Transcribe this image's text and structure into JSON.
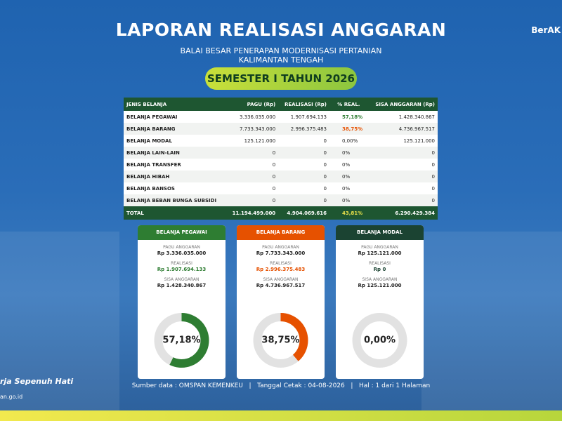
{
  "header": {
    "title": "LAPORAN REALISASI ANGGARAN",
    "subtitle_lines": [
      "BALAI BESAR PENERAPAN MODERNISASI PERTANIAN",
      "KALIMANTAN TENGAH"
    ],
    "period": "SEMESTER I TAHUN 2026"
  },
  "brand": {
    "logo_right": "BerAK",
    "tagline": "rja Sepenuh Hati",
    "website": "an.go.id"
  },
  "table": {
    "columns": [
      "JENIS BELANJA",
      "PAGU (Rp)",
      "REALISASI (Rp)",
      "% REAL.",
      "SISA ANGGARAN (Rp)"
    ],
    "rows": [
      [
        "BELANJA PEGAWAI",
        "3.336.035.000",
        "1.907.694.133",
        "57,18%",
        "1.428.340.867"
      ],
      [
        "BELANJA BARANG",
        "7.733.343.000",
        "2.996.375.483",
        "38,75%",
        "4.736.967.517"
      ],
      [
        "BELANJA MODAL",
        "125.121.000",
        "0",
        "0,00%",
        "125.121.000"
      ],
      [
        "BELANJA LAIN-LAIN",
        "0",
        "0",
        "0%",
        "0"
      ],
      [
        "BELANJA TRANSFER",
        "0",
        "0",
        "0%",
        "0"
      ],
      [
        "BELANJA HIBAH",
        "0",
        "0",
        "0%",
        "0"
      ],
      [
        "BELANJA BANSOS",
        "0",
        "0",
        "0%",
        "0"
      ],
      [
        "BELANJA BEBAN BUNGA SUBSIDI",
        "0",
        "0",
        "0%",
        "0"
      ]
    ],
    "total": [
      "TOTAL",
      "11.194.499.000",
      "4.904.069.616",
      "43,81%",
      "6.290.429.384"
    ]
  },
  "cards": [
    {
      "title": "BELANJA PEGAWAI",
      "color": "#2e7d32",
      "pagu_label": "PAGU ANGGARAN",
      "pagu": "Rp 3.336.035.000",
      "realisasi_label": "REALISASI",
      "realisasi": "Rp 1.907.694.133",
      "sisa_label": "SISA ANGGARAN",
      "sisa": "Rp 1.428.340.867",
      "percent": {
        "value": 57.18,
        "label": "57,18%"
      }
    },
    {
      "title": "BELANJA BARANG",
      "color": "#e65100",
      "pagu_label": "PAGU ANGGARAN",
      "pagu": "Rp 7.733.343.000",
      "realisasi_label": "REALISASI",
      "realisasi": "Rp 2.996.375.483",
      "sisa_label": "SISA ANGGARAN",
      "sisa": "Rp 4.736.967.517",
      "percent": {
        "value": 38.75,
        "label": "38,75%"
      }
    },
    {
      "title": "BELANJA MODAL",
      "color": "#1b4332",
      "pagu_label": "PAGU ANGGARAN",
      "pagu": "Rp 125.121.000",
      "realisasi_label": "REALISASI",
      "realisasi": "Rp 0",
      "sisa_label": "SISA ANGGARAN",
      "sisa": "Rp 125.121.000",
      "percent": {
        "value": 0,
        "label": "0,00%"
      }
    }
  ],
  "footer": "Sumber data : OMSPAN KEMENKEU   |   Tanggal Cetak : 04-08-2026   |   Hal : 1 dari 1 Halaman"
}
